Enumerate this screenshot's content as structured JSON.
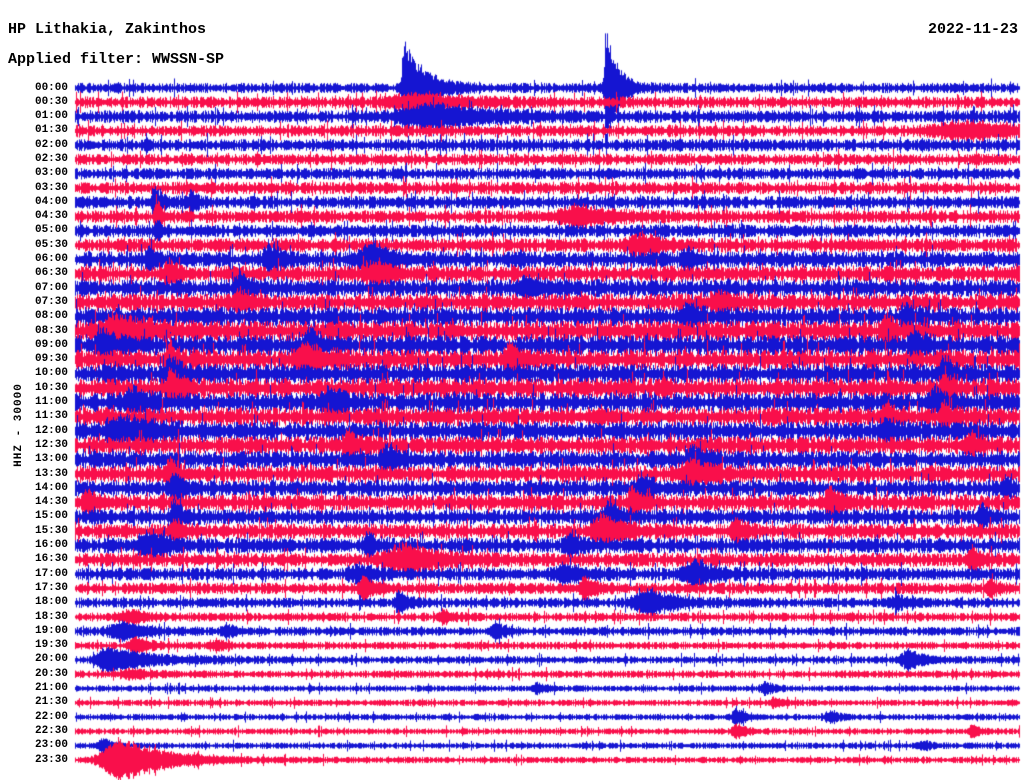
{
  "header": {
    "station": "HP Lithakia, Zakinthos",
    "filter": "Applied filter: WWSSN-SP",
    "date": "2022-11-23"
  },
  "chart_data": {
    "type": "line",
    "subtype": "helicorder-seismogram",
    "title": "HP Lithakia, Zakinthos",
    "subtitle": "Applied filter: WWSSN-SP",
    "date": "2022-11-23",
    "y_axis_label": "HHZ - 30000",
    "x_axis": "time-of-day, one row per 30 minutes, 48 rows from 00:00 to 23:30",
    "legend_position": "none",
    "grid": false,
    "trace_colors": {
      "blue": "#1515d2",
      "red": "#f90f4b"
    },
    "rows": [
      {
        "time": "00:00",
        "color": "blue",
        "base_amp": 4.0,
        "events": [
          {
            "pos": 0.348,
            "amp": 50,
            "rise": 0.0015,
            "decay": 0.02
          },
          {
            "pos": 0.562,
            "amp": 58,
            "rise": 0.0015,
            "decay": 0.012
          }
        ]
      },
      {
        "time": "00:30",
        "color": "red",
        "base_amp": 4.5,
        "events": [
          {
            "pos": 0.36,
            "amp": 6,
            "rise": 0.02,
            "decay": 0.05
          }
        ]
      },
      {
        "time": "01:00",
        "color": "blue",
        "base_amp": 5.0,
        "events": [
          {
            "pos": 0.38,
            "amp": 10,
            "rise": 0.025,
            "decay": 0.06
          }
        ]
      },
      {
        "time": "01:30",
        "color": "red",
        "base_amp": 4.5,
        "events": [
          {
            "pos": 0.95,
            "amp": 7,
            "rise": 0.03,
            "decay": 0.04
          }
        ]
      },
      {
        "time": "02:00",
        "color": "blue",
        "base_amp": 5.0,
        "events": []
      },
      {
        "time": "02:30",
        "color": "red",
        "base_amp": 4.5,
        "events": []
      },
      {
        "time": "03:00",
        "color": "blue",
        "base_amp": 4.5,
        "events": []
      },
      {
        "time": "03:30",
        "color": "red",
        "base_amp": 5.0,
        "events": []
      },
      {
        "time": "04:00",
        "color": "blue",
        "base_amp": 5.0,
        "events": [
          {
            "pos": 0.085,
            "amp": 13,
            "rise": 0.003,
            "decay": 0.008
          },
          {
            "pos": 0.123,
            "amp": 9,
            "rise": 0.003,
            "decay": 0.006
          }
        ]
      },
      {
        "time": "04:30",
        "color": "red",
        "base_amp": 5.0,
        "events": [
          {
            "pos": 0.087,
            "amp": 16,
            "rise": 0.002,
            "decay": 0.005
          },
          {
            "pos": 0.535,
            "amp": 9,
            "rise": 0.015,
            "decay": 0.03
          }
        ]
      },
      {
        "time": "05:00",
        "color": "blue",
        "base_amp": 5.0,
        "events": [
          {
            "pos": 0.087,
            "amp": 10,
            "rise": 0.002,
            "decay": 0.005
          }
        ]
      },
      {
        "time": "05:30",
        "color": "red",
        "base_amp": 5.5,
        "events": [
          {
            "pos": 0.6,
            "amp": 9,
            "rise": 0.01,
            "decay": 0.02
          }
        ]
      },
      {
        "time": "06:00",
        "color": "blue",
        "base_amp": 6.5,
        "events": [
          {
            "pos": 0.08,
            "amp": 10,
            "rise": 0.004,
            "decay": 0.01
          },
          {
            "pos": 0.205,
            "amp": 12,
            "rise": 0.004,
            "decay": 0.012
          },
          {
            "pos": 0.315,
            "amp": 13,
            "rise": 0.01,
            "decay": 0.02
          },
          {
            "pos": 0.65,
            "amp": 9,
            "rise": 0.005,
            "decay": 0.01
          }
        ]
      },
      {
        "time": "06:30",
        "color": "red",
        "base_amp": 6.5,
        "events": [
          {
            "pos": 0.1,
            "amp": 9,
            "rise": 0.004,
            "decay": 0.01
          },
          {
            "pos": 0.32,
            "amp": 8,
            "rise": 0.01,
            "decay": 0.02
          }
        ]
      },
      {
        "time": "07:00",
        "color": "blue",
        "base_amp": 7.0,
        "events": [
          {
            "pos": 0.175,
            "amp": 12,
            "rise": 0.004,
            "decay": 0.012
          },
          {
            "pos": 0.48,
            "amp": 8,
            "rise": 0.008,
            "decay": 0.015
          }
        ]
      },
      {
        "time": "07:30",
        "color": "red",
        "base_amp": 7.0,
        "events": [
          {
            "pos": 0.175,
            "amp": 10,
            "rise": 0.004,
            "decay": 0.01
          },
          {
            "pos": 0.68,
            "amp": 9,
            "rise": 0.005,
            "decay": 0.012
          }
        ]
      },
      {
        "time": "08:00",
        "color": "blue",
        "base_amp": 7.5,
        "events": [
          {
            "pos": 0.65,
            "amp": 11,
            "rise": 0.004,
            "decay": 0.01
          },
          {
            "pos": 0.88,
            "amp": 9,
            "rise": 0.004,
            "decay": 0.01
          }
        ]
      },
      {
        "time": "08:30",
        "color": "red",
        "base_amp": 8.0,
        "events": [
          {
            "pos": 0.045,
            "amp": 12,
            "rise": 0.015,
            "decay": 0.035
          },
          {
            "pos": 0.86,
            "amp": 13,
            "rise": 0.003,
            "decay": 0.008
          }
        ]
      },
      {
        "time": "09:00",
        "color": "blue",
        "base_amp": 8.0,
        "events": [
          {
            "pos": 0.03,
            "amp": 11,
            "rise": 0.005,
            "decay": 0.012
          },
          {
            "pos": 0.25,
            "amp": 10,
            "rise": 0.006,
            "decay": 0.012
          },
          {
            "pos": 0.89,
            "amp": 12,
            "rise": 0.004,
            "decay": 0.01
          }
        ]
      },
      {
        "time": "09:30",
        "color": "red",
        "base_amp": 8.0,
        "events": [
          {
            "pos": 0.1,
            "amp": 18,
            "rise": 0.002,
            "decay": 0.006
          },
          {
            "pos": 0.245,
            "amp": 13,
            "rise": 0.008,
            "decay": 0.02
          },
          {
            "pos": 0.46,
            "amp": 13,
            "rise": 0.004,
            "decay": 0.012
          }
        ]
      },
      {
        "time": "10:00",
        "color": "blue",
        "base_amp": 8.0,
        "events": [
          {
            "pos": 0.1,
            "amp": 16,
            "rise": 0.003,
            "decay": 0.01
          },
          {
            "pos": 0.92,
            "amp": 13,
            "rise": 0.003,
            "decay": 0.008
          }
        ]
      },
      {
        "time": "10:30",
        "color": "red",
        "base_amp": 8.0,
        "events": [
          {
            "pos": 0.1,
            "amp": 19,
            "rise": 0.002,
            "decay": 0.01
          },
          {
            "pos": 0.92,
            "amp": 11,
            "rise": 0.003,
            "decay": 0.008
          }
        ]
      },
      {
        "time": "11:00",
        "color": "blue",
        "base_amp": 8.0,
        "events": [
          {
            "pos": 0.06,
            "amp": 12,
            "rise": 0.005,
            "decay": 0.012
          },
          {
            "pos": 0.27,
            "amp": 12,
            "rise": 0.005,
            "decay": 0.012
          },
          {
            "pos": 0.91,
            "amp": 12,
            "rise": 0.003,
            "decay": 0.01
          }
        ]
      },
      {
        "time": "11:30",
        "color": "red",
        "base_amp": 7.5,
        "events": [
          {
            "pos": 0.86,
            "amp": 10,
            "rise": 0.003,
            "decay": 0.008
          },
          {
            "pos": 0.92,
            "amp": 12,
            "rise": 0.003,
            "decay": 0.01
          }
        ]
      },
      {
        "time": "12:00",
        "color": "blue",
        "base_amp": 7.5,
        "events": [
          {
            "pos": 0.055,
            "amp": 12,
            "rise": 0.012,
            "decay": 0.03
          },
          {
            "pos": 0.86,
            "amp": 9,
            "rise": 0.004,
            "decay": 0.01
          }
        ]
      },
      {
        "time": "12:30",
        "color": "red",
        "base_amp": 7.0,
        "events": [
          {
            "pos": 0.29,
            "amp": 12,
            "rise": 0.004,
            "decay": 0.012
          },
          {
            "pos": 0.95,
            "amp": 10,
            "rise": 0.004,
            "decay": 0.01
          }
        ]
      },
      {
        "time": "13:00",
        "color": "blue",
        "base_amp": 7.0,
        "events": [
          {
            "pos": 0.33,
            "amp": 12,
            "rise": 0.004,
            "decay": 0.012
          },
          {
            "pos": 0.655,
            "amp": 10,
            "rise": 0.005,
            "decay": 0.012
          }
        ]
      },
      {
        "time": "13:30",
        "color": "red",
        "base_amp": 7.0,
        "events": [
          {
            "pos": 0.1,
            "amp": 11,
            "rise": 0.004,
            "decay": 0.01
          },
          {
            "pos": 0.655,
            "amp": 10,
            "rise": 0.01,
            "decay": 0.02
          }
        ]
      },
      {
        "time": "14:00",
        "color": "blue",
        "base_amp": 6.5,
        "events": [
          {
            "pos": 0.105,
            "amp": 15,
            "rise": 0.003,
            "decay": 0.01
          },
          {
            "pos": 0.6,
            "amp": 11,
            "rise": 0.004,
            "decay": 0.012
          },
          {
            "pos": 0.985,
            "amp": 9,
            "rise": 0.003,
            "decay": 0.008
          }
        ]
      },
      {
        "time": "14:30",
        "color": "red",
        "base_amp": 6.5,
        "events": [
          {
            "pos": 0.012,
            "amp": 10,
            "rise": 0.003,
            "decay": 0.01
          },
          {
            "pos": 0.59,
            "amp": 10,
            "rise": 0.004,
            "decay": 0.01
          },
          {
            "pos": 0.8,
            "amp": 12,
            "rise": 0.004,
            "decay": 0.012
          }
        ]
      },
      {
        "time": "15:00",
        "color": "blue",
        "base_amp": 6.0,
        "events": [
          {
            "pos": 0.105,
            "amp": 13,
            "rise": 0.003,
            "decay": 0.01
          },
          {
            "pos": 0.565,
            "amp": 13,
            "rise": 0.004,
            "decay": 0.012
          },
          {
            "pos": 0.96,
            "amp": 10,
            "rise": 0.003,
            "decay": 0.008
          }
        ]
      },
      {
        "time": "15:30",
        "color": "red",
        "base_amp": 6.0,
        "events": [
          {
            "pos": 0.105,
            "amp": 10,
            "rise": 0.003,
            "decay": 0.008
          },
          {
            "pos": 0.56,
            "amp": 14,
            "rise": 0.008,
            "decay": 0.02
          },
          {
            "pos": 0.7,
            "amp": 10,
            "rise": 0.004,
            "decay": 0.01
          }
        ]
      },
      {
        "time": "16:00",
        "color": "blue",
        "base_amp": 6.0,
        "events": [
          {
            "pos": 0.08,
            "amp": 11,
            "rise": 0.01,
            "decay": 0.02
          },
          {
            "pos": 0.31,
            "amp": 9,
            "rise": 0.004,
            "decay": 0.01
          },
          {
            "pos": 0.525,
            "amp": 9,
            "rise": 0.004,
            "decay": 0.012
          }
        ]
      },
      {
        "time": "16:30",
        "color": "red",
        "base_amp": 5.5,
        "events": [
          {
            "pos": 0.35,
            "amp": 12,
            "rise": 0.015,
            "decay": 0.04
          },
          {
            "pos": 0.95,
            "amp": 10,
            "rise": 0.003,
            "decay": 0.01
          }
        ]
      },
      {
        "time": "17:00",
        "color": "blue",
        "base_amp": 5.0,
        "events": [
          {
            "pos": 0.3,
            "amp": 8,
            "rise": 0.006,
            "decay": 0.015
          },
          {
            "pos": 0.52,
            "amp": 8,
            "rise": 0.008,
            "decay": 0.02
          },
          {
            "pos": 0.66,
            "amp": 10,
            "rise": 0.01,
            "decay": 0.02
          }
        ]
      },
      {
        "time": "17:30",
        "color": "red",
        "base_amp": 4.5,
        "events": [
          {
            "pos": 0.305,
            "amp": 10,
            "rise": 0.003,
            "decay": 0.01
          },
          {
            "pos": 0.54,
            "amp": 10,
            "rise": 0.004,
            "decay": 0.012
          },
          {
            "pos": 0.97,
            "amp": 8,
            "rise": 0.003,
            "decay": 0.008
          }
        ]
      },
      {
        "time": "18:00",
        "color": "blue",
        "base_amp": 4.0,
        "events": [
          {
            "pos": 0.342,
            "amp": 12,
            "rise": 0.002,
            "decay": 0.008
          },
          {
            "pos": 0.61,
            "amp": 12,
            "rise": 0.012,
            "decay": 0.025
          },
          {
            "pos": 0.87,
            "amp": 7,
            "rise": 0.004,
            "decay": 0.01
          }
        ]
      },
      {
        "time": "18:30",
        "color": "red",
        "base_amp": 3.5,
        "events": [
          {
            "pos": 0.06,
            "amp": 5,
            "rise": 0.01,
            "decay": 0.02
          },
          {
            "pos": 0.39,
            "amp": 6,
            "rise": 0.004,
            "decay": 0.01
          }
        ]
      },
      {
        "time": "19:00",
        "color": "blue",
        "base_amp": 3.5,
        "events": [
          {
            "pos": 0.05,
            "amp": 8,
            "rise": 0.01,
            "decay": 0.025
          },
          {
            "pos": 0.16,
            "amp": 6,
            "rise": 0.004,
            "decay": 0.01
          },
          {
            "pos": 0.445,
            "amp": 9,
            "rise": 0.003,
            "decay": 0.01
          }
        ]
      },
      {
        "time": "19:30",
        "color": "red",
        "base_amp": 3.0,
        "events": [
          {
            "pos": 0.065,
            "amp": 7,
            "rise": 0.006,
            "decay": 0.015
          },
          {
            "pos": 0.15,
            "amp": 5,
            "rise": 0.004,
            "decay": 0.01
          }
        ]
      },
      {
        "time": "20:00",
        "color": "blue",
        "base_amp": 3.0,
        "events": [
          {
            "pos": 0.035,
            "amp": 12,
            "rise": 0.008,
            "decay": 0.045
          },
          {
            "pos": 0.885,
            "amp": 9,
            "rise": 0.008,
            "decay": 0.015
          }
        ]
      },
      {
        "time": "20:30",
        "color": "red",
        "base_amp": 3.0,
        "events": [
          {
            "pos": 0.06,
            "amp": 4,
            "rise": 0.01,
            "decay": 0.02
          }
        ]
      },
      {
        "time": "21:00",
        "color": "blue",
        "base_amp": 2.5,
        "events": [
          {
            "pos": 0.49,
            "amp": 5,
            "rise": 0.004,
            "decay": 0.01
          },
          {
            "pos": 0.73,
            "amp": 6,
            "rise": 0.003,
            "decay": 0.01
          }
        ]
      },
      {
        "time": "21:30",
        "color": "red",
        "base_amp": 2.5,
        "events": [
          {
            "pos": 0.74,
            "amp": 4,
            "rise": 0.004,
            "decay": 0.01
          }
        ]
      },
      {
        "time": "22:00",
        "color": "blue",
        "base_amp": 2.5,
        "events": [
          {
            "pos": 0.7,
            "amp": 9,
            "rise": 0.003,
            "decay": 0.01
          },
          {
            "pos": 0.8,
            "amp": 5,
            "rise": 0.004,
            "decay": 0.01
          }
        ]
      },
      {
        "time": "22:30",
        "color": "red",
        "base_amp": 2.5,
        "events": [
          {
            "pos": 0.7,
            "amp": 7,
            "rise": 0.003,
            "decay": 0.01
          },
          {
            "pos": 0.95,
            "amp": 6,
            "rise": 0.003,
            "decay": 0.008
          }
        ]
      },
      {
        "time": "23:00",
        "color": "blue",
        "base_amp": 2.5,
        "events": [
          {
            "pos": 0.03,
            "amp": 7,
            "rise": 0.004,
            "decay": 0.01
          },
          {
            "pos": 0.9,
            "amp": 4,
            "rise": 0.004,
            "decay": 0.008
          }
        ]
      },
      {
        "time": "23:30",
        "color": "red",
        "base_amp": 2.5,
        "events": [
          {
            "pos": 0.05,
            "amp": 22,
            "rise": 0.015,
            "decay": 0.045
          }
        ]
      }
    ]
  }
}
